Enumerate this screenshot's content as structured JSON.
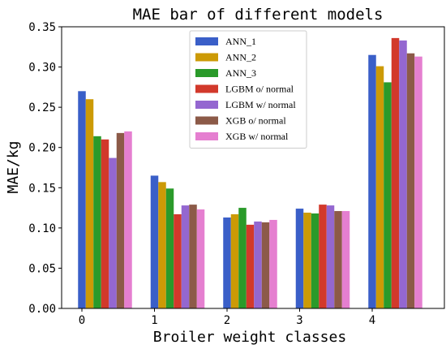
{
  "chart_data": {
    "type": "bar",
    "title": "MAE bar of different models",
    "xlabel": "Broiler weight classes",
    "ylabel": "MAE/kg",
    "categories": [
      "0",
      "1",
      "2",
      "3",
      "4"
    ],
    "ylim": [
      0,
      0.35
    ],
    "yticks": [
      "0.00",
      "0.05",
      "0.10",
      "0.15",
      "0.20",
      "0.25",
      "0.30",
      "0.35"
    ],
    "ytick_values": [
      0,
      0.05,
      0.1,
      0.15,
      0.2,
      0.25,
      0.3,
      0.35
    ],
    "grid": false,
    "legend_position": "top-center",
    "series": [
      {
        "name": "ANN_1",
        "color": "#3a5fc8",
        "values": [
          0.27,
          0.165,
          0.113,
          0.124,
          0.315
        ]
      },
      {
        "name": "ANN_2",
        "color": "#cc9a06",
        "values": [
          0.26,
          0.157,
          0.117,
          0.119,
          0.301
        ]
      },
      {
        "name": "ANN_3",
        "color": "#2a9a2a",
        "values": [
          0.214,
          0.149,
          0.125,
          0.118,
          0.281
        ]
      },
      {
        "name": "LGBM o/ normal",
        "color": "#d2392b",
        "values": [
          0.21,
          0.117,
          0.104,
          0.129,
          0.336
        ]
      },
      {
        "name": "LGBM w/ normal",
        "color": "#9467d0",
        "values": [
          0.187,
          0.128,
          0.108,
          0.128,
          0.333
        ]
      },
      {
        "name": "XGB o/ normal",
        "color": "#8c5a48",
        "values": [
          0.218,
          0.129,
          0.107,
          0.121,
          0.317
        ]
      },
      {
        "name": "XGB w/ normal",
        "color": "#e57fd0",
        "values": [
          0.22,
          0.123,
          0.11,
          0.121,
          0.313
        ]
      }
    ]
  }
}
